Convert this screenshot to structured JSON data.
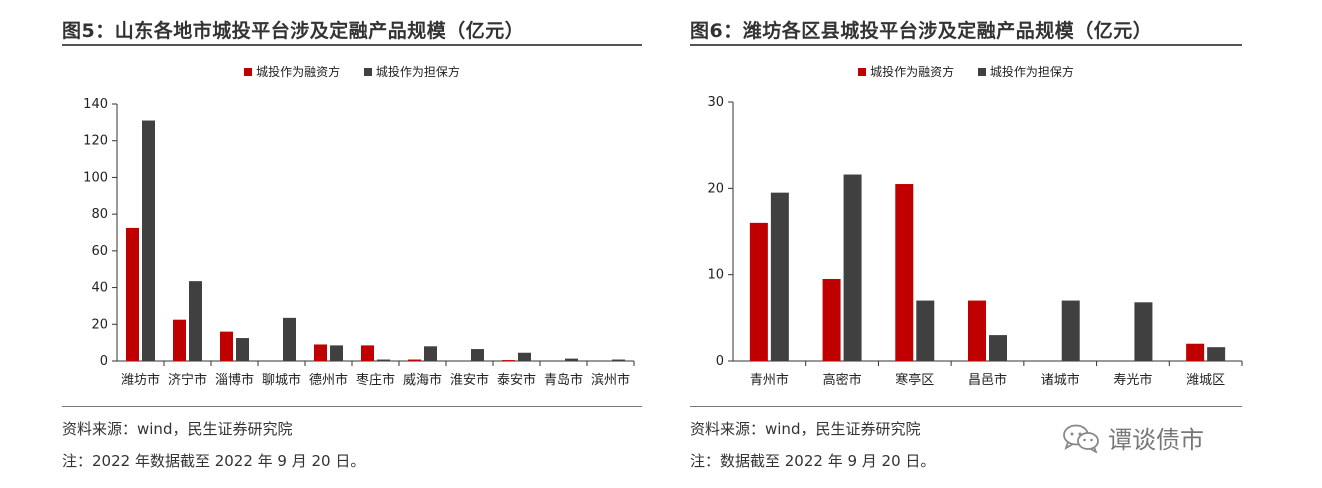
{
  "colors": {
    "financing": "#c00000",
    "guarantor": "#404040",
    "axis": "#333333"
  },
  "left": {
    "title": "图5：山东各地市城投平台涉及定融产品规模（亿元）",
    "legend": [
      "城投作为融资方",
      "城投作为担保方"
    ],
    "notes": [
      "资料来源：wind，民生证券研究院",
      "注：2022 年数据截至 2022 年 9 月 20 日。"
    ]
  },
  "right": {
    "title": "图6：潍坊各区县城投平台涉及定融产品规模（亿元）",
    "legend": [
      "城投作为融资方",
      "城投作为担保方"
    ],
    "notes": [
      "资料来源：wind，民生证券研究院",
      "注：数据截至 2022 年 9 月 20 日。"
    ]
  },
  "watermark": {
    "text": "谭谈债市",
    "icon": "wechat-icon"
  },
  "chart_data": [
    {
      "type": "bar",
      "title": "图5：山东各地市城投平台涉及定融产品规模（亿元）",
      "categories": [
        "潍坊市",
        "济宁市",
        "淄博市",
        "聊城市",
        "德州市",
        "枣庄市",
        "威海市",
        "淮安市",
        "泰安市",
        "青岛市",
        "滨州市"
      ],
      "series": [
        {
          "name": "城投作为融资方",
          "values": [
            72.5,
            22.5,
            16,
            0,
            9,
            8.5,
            0.8,
            0,
            0.5,
            0,
            0
          ]
        },
        {
          "name": "城投作为担保方",
          "values": [
            131,
            43.5,
            12.5,
            23.5,
            8.5,
            0.8,
            8,
            6.5,
            4.5,
            1.3,
            0.8
          ]
        }
      ],
      "yticks": [
        0,
        20,
        40,
        60,
        80,
        100,
        120,
        140
      ],
      "ylim": [
        0,
        140
      ],
      "xlabel": "",
      "ylabel": "",
      "grid": false,
      "legend_position": "top-center"
    },
    {
      "type": "bar",
      "title": "图6：潍坊各区县城投平台涉及定融产品规模（亿元）",
      "categories": [
        "青州市",
        "高密市",
        "寒亭区",
        "昌邑市",
        "诸城市",
        "寿光市",
        "潍城区"
      ],
      "series": [
        {
          "name": "城投作为融资方",
          "values": [
            16,
            9.5,
            20.5,
            7,
            0,
            0,
            2
          ]
        },
        {
          "name": "城投作为担保方",
          "values": [
            19.5,
            21.6,
            7,
            3,
            7,
            6.8,
            1.6
          ]
        }
      ],
      "yticks": [
        0,
        10,
        20,
        30
      ],
      "ylim": [
        0,
        30
      ],
      "xlabel": "",
      "ylabel": "",
      "grid": false,
      "legend_position": "top-center"
    }
  ]
}
